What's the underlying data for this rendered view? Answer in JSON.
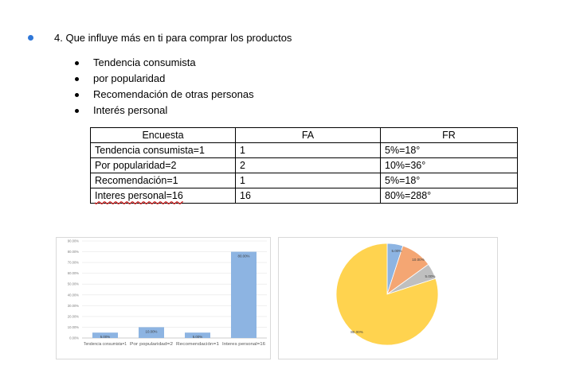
{
  "question": "4. Que influye más en ti para comprar los productos",
  "options": [
    "Tendencia consumista",
    "por popularidad",
    "Recomendación de otras personas",
    "Interés personal"
  ],
  "table": {
    "headers": [
      "Encuesta",
      "FA",
      "FR"
    ],
    "rows": [
      [
        "Tendencia consumista=1",
        "1",
        "5%=18°"
      ],
      [
        "Por popularidad=2",
        "2",
        "10%=36°"
      ],
      [
        "Recomendación=1",
        "1",
        "5%=18°"
      ],
      [
        "Interes personal=16",
        "16",
        "80%=288°"
      ]
    ]
  },
  "chart_data": [
    {
      "type": "bar",
      "categories": [
        "Tendencia consumista=1",
        "Por popularidad=2",
        "Recomendación=1",
        "Interes personal=16"
      ],
      "values": [
        5,
        10,
        5,
        80
      ],
      "data_labels": [
        "5.00%",
        "10.00%",
        "5.00%",
        "80.00%"
      ],
      "ylim": [
        0,
        90
      ],
      "yticks": [
        "0.00%",
        "10.00%",
        "20.00%",
        "30.00%",
        "40.00%",
        "50.00%",
        "60.00%",
        "70.00%",
        "80.00%",
        "90.00%"
      ],
      "grid": true,
      "colors": {
        "bar": "#8db4e2"
      }
    },
    {
      "type": "pie",
      "values": [
        5,
        10,
        5,
        80
      ],
      "data_labels": [
        "5.00%",
        "10.00%",
        "5.00%",
        "80.00%"
      ],
      "colors": [
        "#8db4e2",
        "#f4a673",
        "#bfbfbf",
        "#ffd34f"
      ]
    }
  ]
}
